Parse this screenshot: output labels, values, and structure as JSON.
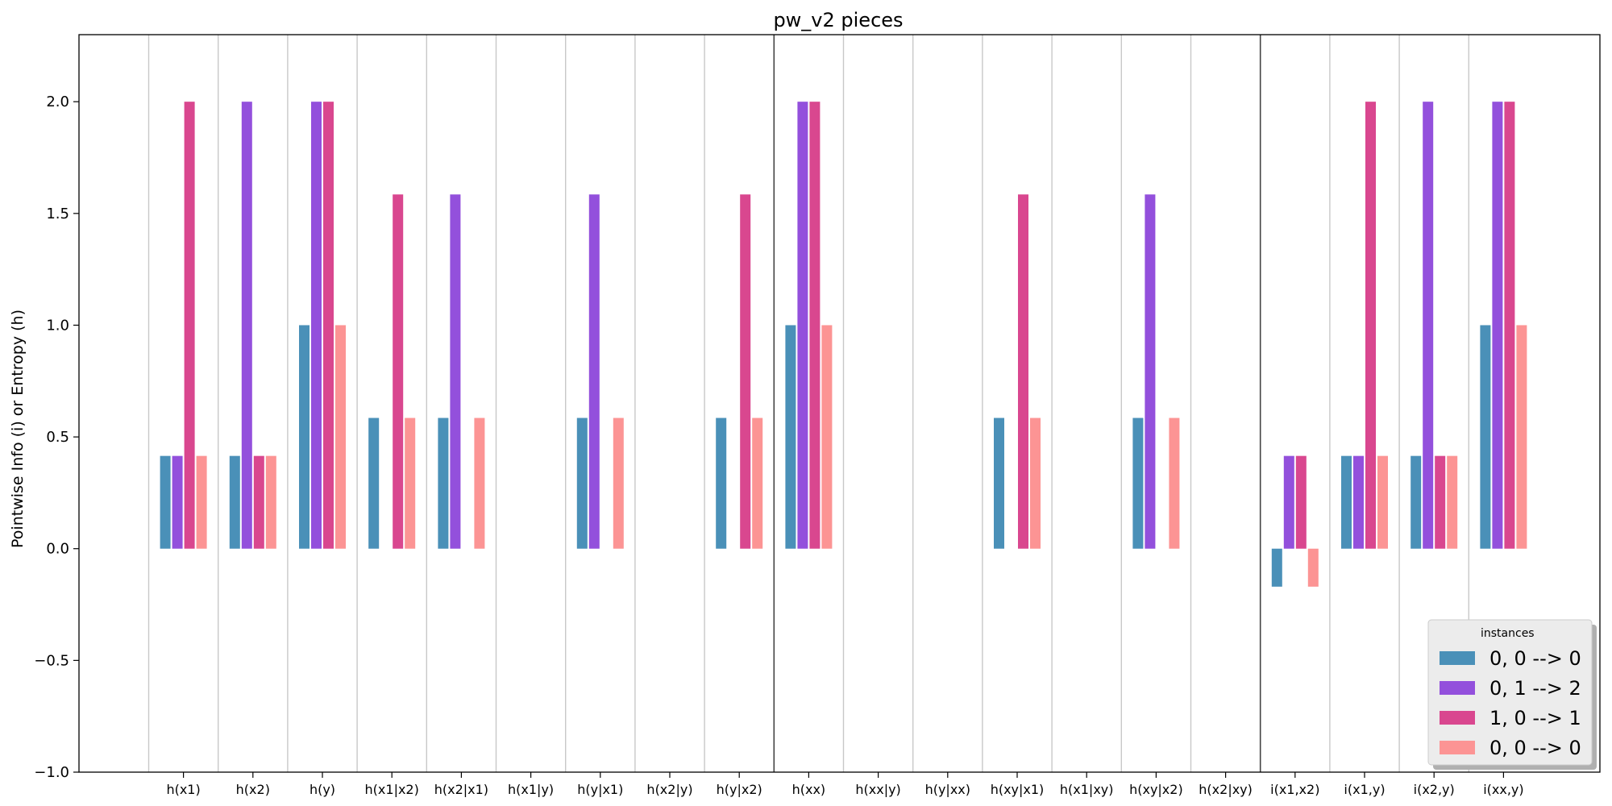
{
  "chart_data": {
    "type": "bar",
    "title": "pw_v2 pieces",
    "xlabel": "",
    "ylabel": "Pointwise Info (i) or Entropy (h)",
    "ylim": [
      -1.0,
      2.3
    ],
    "yticks": [
      -1.0,
      -0.5,
      0.0,
      0.5,
      1.0,
      1.5,
      2.0
    ],
    "ytick_labels": [
      "−1.0",
      "−0.5",
      "0.0",
      "0.5",
      "1.0",
      "1.5",
      "2.0"
    ],
    "grid": "vertical separators only",
    "categories": [
      "h(x1)",
      "h(x2)",
      "h(y)",
      "h(x1|x2)",
      "h(x2|x1)",
      "h(x1|y)",
      "h(y|x1)",
      "h(x2|y)",
      "h(y|x2)",
      "h(xx)",
      "h(xx|y)",
      "h(y|xx)",
      "h(xy|x1)",
      "h(x1|xy)",
      "h(xy|x2)",
      "h(x2|xy)",
      "i(x1,x2)",
      "i(x1,y)",
      "i(x2,y)",
      "i(xx,y)"
    ],
    "group_dividers_after": [
      "h(y|x2)",
      "h(x2|xy)"
    ],
    "legend": {
      "title": "instances",
      "position": "bottom-right"
    },
    "series": [
      {
        "name": "0, 0 --> 0",
        "color": "#4a90b8",
        "values": [
          0.415,
          0.415,
          1.0,
          0.585,
          0.585,
          0,
          0.585,
          0,
          0.585,
          1.0,
          0,
          0,
          0.585,
          0,
          0.585,
          0,
          -0.17,
          0.415,
          0.415,
          1.0
        ]
      },
      {
        "name": "0, 1 --> 2",
        "color": "#9350dc",
        "values": [
          0.415,
          2.0,
          2.0,
          0,
          1.585,
          0,
          1.585,
          0,
          0,
          2.0,
          0,
          0,
          0,
          0,
          1.585,
          0,
          0.415,
          0.415,
          2.0,
          2.0
        ]
      },
      {
        "name": "1, 0 --> 1",
        "color": "#d9478f",
        "values": [
          2.0,
          0.415,
          2.0,
          1.585,
          0,
          0,
          0,
          0,
          1.585,
          2.0,
          0,
          0,
          1.585,
          0,
          0,
          0,
          0.415,
          2.0,
          0.415,
          2.0
        ]
      },
      {
        "name": "0, 0 --> 0",
        "color": "#fc9494",
        "values": [
          0.415,
          0.415,
          1.0,
          0.585,
          0.585,
          0,
          0.585,
          0,
          0.585,
          1.0,
          0,
          0,
          0.585,
          0,
          0.585,
          0,
          -0.17,
          0.415,
          0.415,
          1.0
        ]
      }
    ]
  }
}
